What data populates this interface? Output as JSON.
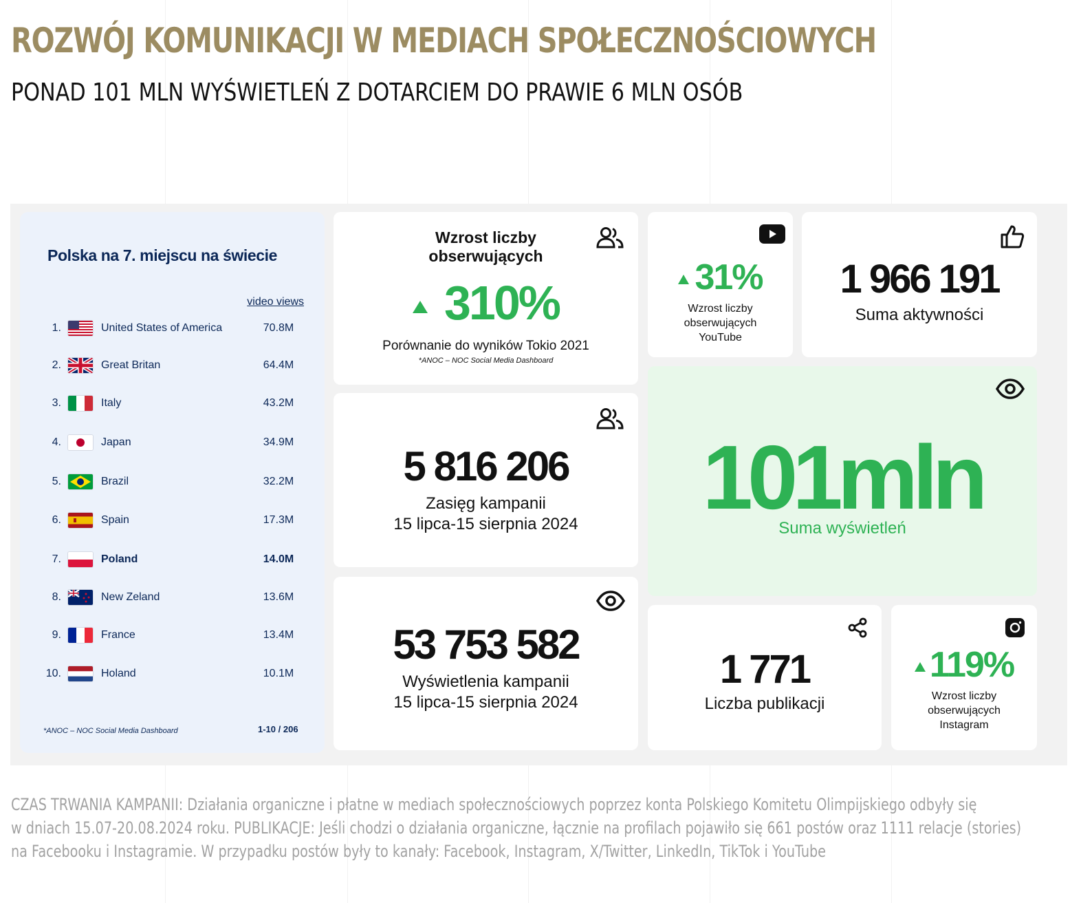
{
  "header": {
    "title": "ROZWÓJ KOMUNIKACJI W MEDIACH SPOŁECZNOŚCIOWYCH",
    "subtitle": "PONAD 101 MLN WYŚWIETLEŃ Z DOTARCIEM DO PRAWIE 6 MLN OSÓB"
  },
  "ranking": {
    "title": "Polska na 7. miejscu na świecie",
    "column_header": "video views",
    "rows": [
      {
        "rank": "1.",
        "country": "United States of America",
        "value": "70.8M",
        "flag": "us-flag-icon"
      },
      {
        "rank": "2.",
        "country": "Great Britan",
        "value": "64.4M",
        "flag": "uk-flag-icon"
      },
      {
        "rank": "3.",
        "country": "Italy",
        "value": "43.2M",
        "flag": "italy-flag-icon"
      },
      {
        "rank": "4.",
        "country": "Japan",
        "value": "34.9M",
        "flag": "japan-flag-icon"
      },
      {
        "rank": "5.",
        "country": "Brazil",
        "value": "32.2M",
        "flag": "brazil-flag-icon"
      },
      {
        "rank": "6.",
        "country": "Spain",
        "value": "17.3M",
        "flag": "spain-flag-icon"
      },
      {
        "rank": "7.",
        "country": "Poland",
        "value": "14.0M",
        "flag": "poland-flag-icon",
        "highlight": true
      },
      {
        "rank": "8.",
        "country": "New Zeland",
        "value": "13.6M",
        "flag": "new-zealand-flag-icon"
      },
      {
        "rank": "9.",
        "country": "France",
        "value": "13.4M",
        "flag": "france-flag-icon"
      },
      {
        "rank": "10.",
        "country": "Holand",
        "value": "10.1M",
        "flag": "netherlands-flag-icon"
      }
    ],
    "source": "*ANOC – NOC Social Media Dashboard",
    "pagination": "1-10 / 206"
  },
  "followers_growth": {
    "title_line1": "Wzrost liczby",
    "title_line2": "obserwujących",
    "value": "310%",
    "caption": "Porównanie do wyników Tokio 2021",
    "source": "*ANOC – NOC Social Media Dashboard",
    "icon": "people-icon"
  },
  "reach": {
    "value": "5 816 206",
    "label_line1": "Zasięg kampanii",
    "label_line2": "15 lipca-15 sierpnia 2024",
    "icon": "people-icon"
  },
  "campaign_views": {
    "value": "53 753 582",
    "label_line1": "Wyświetlenia kampanii",
    "label_line2": "15 lipca-15 sierpnia 2024",
    "icon": "eye-icon"
  },
  "youtube": {
    "value": "31%",
    "label_line1": "Wzrost liczby",
    "label_line2": "obserwujących",
    "label_line3": "YouTube",
    "icon": "youtube-icon"
  },
  "activity": {
    "value": "1 966 191",
    "label": "Suma aktywności",
    "icon": "thumbs-up-icon"
  },
  "total_views": {
    "value": "101mln",
    "label": "Suma wyświetleń",
    "icon": "eye-icon"
  },
  "publications": {
    "value": "1 771",
    "label": "Liczba publikacji",
    "icon": "share-icon"
  },
  "instagram": {
    "value": "119%",
    "label_line1": "Wzrost liczby",
    "label_line2": "obserwujących",
    "label_line3": "Instagram",
    "icon": "instagram-icon"
  },
  "colors": {
    "title_gold": "#9c8c62",
    "accent_green": "#2eb254",
    "navy": "#0b2757",
    "footnote_gray": "#a2a2a2"
  },
  "footnote": {
    "line1": "CZAS TRWANIA KAMPANII: Działania organiczne i płatne w mediach społecznościowych poprzez konta Polskiego Komitetu Olimpijskiego odbyły się",
    "line2": "w dniach 15.07-20.08.2024 roku. PUBLIKACJE: Jeśli chodzi o działania organiczne, łącznie na profilach pojawiło się 661 postów oraz 1111 relacje (stories)",
    "line3": "na Facebooku i Instagramie. W przypadku postów były to kanały: Facebook, Instagram, X/Twitter, LinkedIn, TikTok i YouTube"
  }
}
